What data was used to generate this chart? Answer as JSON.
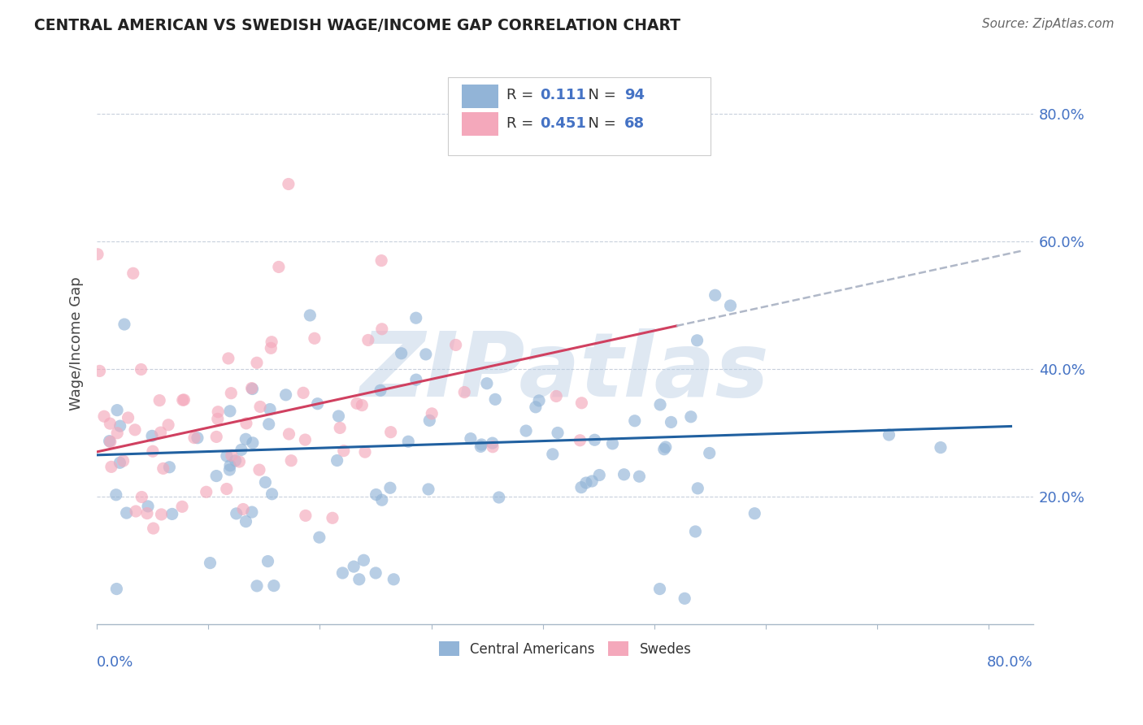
{
  "title": "CENTRAL AMERICAN VS SWEDISH WAGE/INCOME GAP CORRELATION CHART",
  "source": "Source: ZipAtlas.com",
  "ylabel": "Wage/Income Gap",
  "watermark": "ZIPatlas",
  "bottom_legend": [
    "Central Americans",
    "Swedes"
  ],
  "blue_color": "#92b4d7",
  "pink_color": "#f4a8bb",
  "blue_line_color": "#2060a0",
  "pink_line_color": "#d04060",
  "dashed_line_color": "#b0b8c8",
  "R_blue": 0.111,
  "N_blue": 94,
  "R_pink": 0.451,
  "N_pink": 68,
  "ylim": [
    0.0,
    0.88
  ],
  "xlim": [
    0.0,
    0.84
  ],
  "yticks": [
    0.2,
    0.4,
    0.6,
    0.8
  ],
  "ytick_labels": [
    "20.0%",
    "40.0%",
    "60.0%",
    "80.0%"
  ],
  "background_color": "#ffffff",
  "grid_color": "#c8d0dc",
  "blue_slope": 0.055,
  "blue_intercept": 0.265,
  "pink_slope": 0.38,
  "pink_intercept": 0.27,
  "legend_text_color": "#4472c4",
  "label_color": "#4472c4"
}
